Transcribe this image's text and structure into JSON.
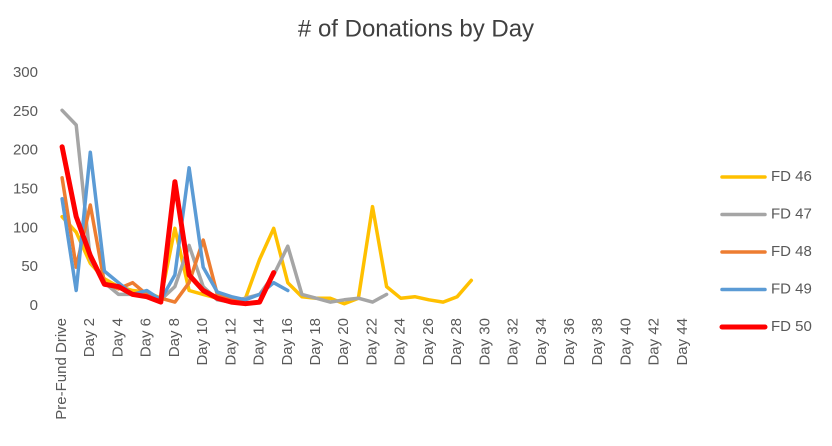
{
  "chart_data": {
    "type": "line",
    "title": "# of Donations by Day",
    "categories": [
      "Pre-Fund Drive",
      null,
      "Day 2",
      null,
      "Day 4",
      null,
      "Day 6",
      null,
      "Day 8",
      null,
      "Day 10",
      null,
      "Day 12",
      null,
      "Day 14",
      null,
      "Day 16",
      null,
      "Day 18",
      null,
      "Day 20",
      null,
      "Day 22",
      null,
      "Day 24",
      null,
      "Day 26",
      null,
      "Day 28",
      null,
      "Day 30",
      null,
      "Day 32",
      null,
      "Day 34",
      null,
      "Day 36",
      null,
      "Day 38",
      null,
      "Day 40",
      null,
      "Day 42",
      null,
      "Day 44"
    ],
    "ylim": [
      0,
      300
    ],
    "yticks": [
      0,
      50,
      100,
      150,
      200,
      250,
      300
    ],
    "grid": false,
    "legend": "right",
    "series": [
      {
        "name": "FD 46",
        "color": "#ffc000",
        "values": [
          115,
          95,
          55,
          35,
          25,
          20,
          18,
          10,
          100,
          20,
          15,
          10,
          5,
          10,
          60,
          100,
          30,
          12,
          10,
          10,
          3,
          10,
          128,
          25,
          10,
          12,
          8,
          5,
          12,
          33,
          null,
          null,
          null,
          null,
          null,
          null,
          null,
          null,
          null,
          null,
          null,
          null,
          null,
          null,
          null
        ]
      },
      {
        "name": "FD 47",
        "color": "#a5a5a5",
        "values": [
          252,
          233,
          60,
          30,
          15,
          15,
          12,
          8,
          25,
          78,
          25,
          8,
          5,
          10,
          15,
          40,
          77,
          15,
          10,
          5,
          8,
          10,
          5,
          15,
          null,
          null,
          null,
          null,
          null,
          null,
          null,
          null,
          null,
          null,
          null,
          null,
          null,
          null,
          null,
          null,
          null,
          null,
          null,
          null,
          null
        ]
      },
      {
        "name": "FD 48",
        "color": "#ed7d31",
        "values": [
          165,
          50,
          130,
          30,
          22,
          30,
          15,
          10,
          5,
          30,
          85,
          15,
          8,
          5,
          null,
          null,
          null,
          null,
          null,
          null,
          null,
          null,
          null,
          null,
          null,
          null,
          null,
          null,
          null,
          null,
          null,
          null,
          null,
          null,
          null,
          null,
          null,
          null,
          null,
          null,
          null,
          null,
          null,
          null,
          null
        ]
      },
      {
        "name": "FD 49",
        "color": "#5b9bd5",
        "values": [
          138,
          20,
          198,
          45,
          30,
          15,
          20,
          8,
          40,
          178,
          50,
          18,
          12,
          8,
          15,
          30,
          20,
          null,
          null,
          null,
          null,
          null,
          null,
          null,
          null,
          null,
          null,
          null,
          null,
          null,
          null,
          null,
          null,
          null,
          null,
          null,
          null,
          null,
          null,
          null,
          null,
          null,
          null,
          null,
          null
        ]
      },
      {
        "name": "FD 50",
        "color": "#ff0000",
        "values": [
          205,
          115,
          65,
          28,
          25,
          15,
          12,
          5,
          160,
          40,
          20,
          10,
          5,
          3,
          5,
          43,
          null,
          null,
          null,
          null,
          null,
          null,
          null,
          null,
          null,
          null,
          null,
          null,
          null,
          null,
          null,
          null,
          null,
          null,
          null,
          null,
          null,
          null,
          null,
          null,
          null,
          null,
          null,
          null,
          null
        ]
      }
    ]
  }
}
